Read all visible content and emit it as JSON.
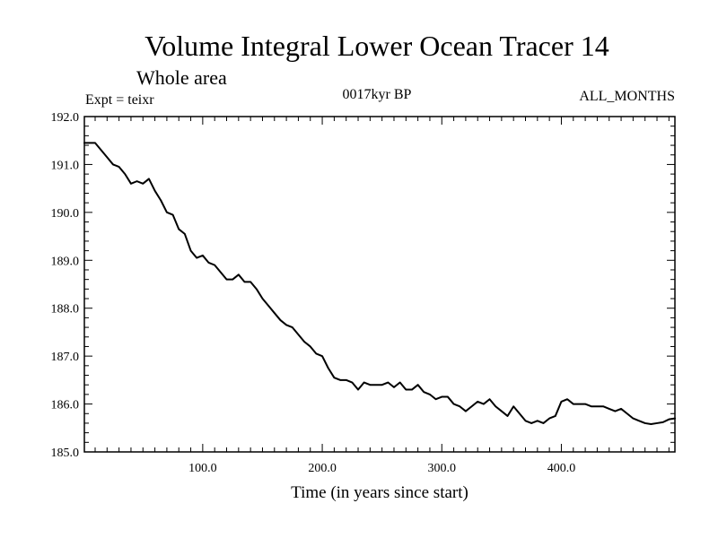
{
  "header": {
    "title": "Volume Integral Lower Ocean Tracer 14",
    "subtitle": "Whole area",
    "expt": "Expt = teixr",
    "period": "0017kyr BP",
    "months": "ALL_MONTHS"
  },
  "chart_data": {
    "type": "line",
    "title": "Volume Integral Lower Ocean Tracer 14",
    "subtitle": "Whole area",
    "xlabel": "Time (in years since start)",
    "ylabel": "",
    "xlim": [
      1,
      495
    ],
    "ylim": [
      185.0,
      192.0
    ],
    "x_ticks": [
      100.0,
      200.0,
      300.0,
      400.0
    ],
    "x_tick_labels": [
      "100.0",
      "200.0",
      "300.0",
      "400.0"
    ],
    "y_ticks": [
      185.0,
      186.0,
      187.0,
      188.0,
      189.0,
      190.0,
      191.0,
      192.0
    ],
    "y_tick_labels": [
      "185.0",
      "186.0",
      "187.0",
      "188.0",
      "189.0",
      "190.0",
      "191.0",
      "192.0"
    ],
    "grid": false,
    "series": [
      {
        "color": "#000000",
        "x": [
          1,
          10,
          20,
          25,
          30,
          35,
          40,
          45,
          50,
          55,
          60,
          65,
          70,
          75,
          80,
          85,
          90,
          95,
          100,
          105,
          110,
          115,
          120,
          125,
          130,
          135,
          140,
          145,
          150,
          155,
          160,
          165,
          170,
          175,
          180,
          185,
          190,
          195,
          200,
          205,
          210,
          215,
          220,
          225,
          230,
          235,
          240,
          245,
          250,
          255,
          260,
          265,
          270,
          275,
          280,
          285,
          290,
          295,
          300,
          305,
          310,
          315,
          320,
          325,
          330,
          335,
          340,
          345,
          350,
          355,
          360,
          365,
          370,
          375,
          380,
          385,
          390,
          395,
          400,
          405,
          410,
          415,
          420,
          425,
          430,
          435,
          440,
          445,
          450,
          455,
          460,
          465,
          470,
          475,
          480,
          485,
          490,
          495
        ],
        "y": [
          191.45,
          191.45,
          191.15,
          191.0,
          190.95,
          190.8,
          190.6,
          190.65,
          190.6,
          190.7,
          190.45,
          190.25,
          190.0,
          189.95,
          189.65,
          189.55,
          189.2,
          189.05,
          189.1,
          188.95,
          188.9,
          188.75,
          188.6,
          188.6,
          188.7,
          188.55,
          188.55,
          188.4,
          188.2,
          188.05,
          187.9,
          187.75,
          187.65,
          187.6,
          187.45,
          187.3,
          187.2,
          187.05,
          187.0,
          186.75,
          186.55,
          186.5,
          186.5,
          186.45,
          186.3,
          186.45,
          186.4,
          186.4,
          186.4,
          186.45,
          186.35,
          186.45,
          186.3,
          186.3,
          186.4,
          186.25,
          186.2,
          186.1,
          186.15,
          186.15,
          186.0,
          185.95,
          185.85,
          185.95,
          186.05,
          186.0,
          186.1,
          185.95,
          185.85,
          185.75,
          185.95,
          185.8,
          185.65,
          185.6,
          185.65,
          185.6,
          185.7,
          185.75,
          186.05,
          186.1,
          186.0,
          186.0,
          186.0,
          185.95,
          185.95,
          185.95,
          185.9,
          185.85,
          185.9,
          185.8,
          185.7,
          185.65,
          185.6,
          185.58,
          185.6,
          185.62,
          185.68,
          185.7
        ]
      }
    ]
  }
}
